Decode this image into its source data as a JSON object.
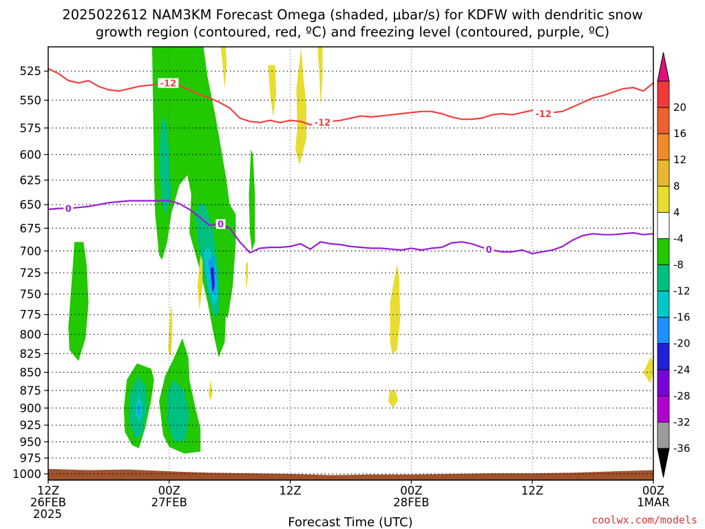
{
  "title": {
    "line1": "2025022612 NAM3KM Forecast Omega (shaded, μbar/s) for KDFW with dendritic snow",
    "line2": "growth region (contoured, red, ºC) and freezing level (contoured, purple, ºC)"
  },
  "x_axis_label": "Forecast Time (UTC)",
  "credit": "coolwx.com/models",
  "chart_data": {
    "type": "heatmap",
    "x_ticks": [
      {
        "hour": 0,
        "lines": [
          "12Z",
          "26FEB",
          "2025"
        ]
      },
      {
        "hour": 12,
        "lines": [
          "00Z",
          "27FEB"
        ]
      },
      {
        "hour": 24,
        "lines": [
          "12Z"
        ]
      },
      {
        "hour": 36,
        "lines": [
          "00Z",
          "28FEB"
        ]
      },
      {
        "hour": 48,
        "lines": [
          "12Z"
        ]
      },
      {
        "hour": 60,
        "lines": [
          "00Z",
          "1MAR"
        ]
      }
    ],
    "xlim": [
      0,
      60
    ],
    "y_ticks": [
      525,
      550,
      575,
      600,
      625,
      650,
      675,
      700,
      725,
      750,
      775,
      800,
      825,
      850,
      875,
      900,
      925,
      950,
      975,
      1000
    ],
    "ylim_hpa": [
      1010,
      505
    ],
    "y_scale": "log-pressure",
    "grid": "dotted",
    "colorbar": {
      "levels": [
        -36,
        -32,
        -28,
        -24,
        -20,
        -16,
        -12,
        -8,
        -4,
        4,
        8,
        12,
        16,
        20
      ],
      "colors": [
        "#9b9b9b",
        "#b000d0",
        "#7a00d8",
        "#2020d8",
        "#1e90ff",
        "#00c8c8",
        "#00c080",
        "#22c800",
        "#ffffff",
        "#e8dc30",
        "#e8b830",
        "#f08a2a",
        "#f06030",
        "#f03a3a"
      ],
      "under_color": "#000000",
      "over_color": "#e0107a"
    },
    "contour_colors": {
      "dgz_red": "#f04040",
      "freezing_purple": "#9a1ad8",
      "ground": "#a0522d"
    },
    "contour_labels": {
      "dgz": "-12",
      "freezing": "0"
    },
    "dgz_line_neg12": {
      "hours": [
        0,
        1,
        2,
        3,
        4,
        5,
        6,
        7,
        8,
        9,
        10,
        11,
        12,
        13,
        14,
        15,
        16,
        17,
        18,
        19,
        20,
        21,
        22,
        23,
        24,
        25,
        26,
        27,
        28,
        29,
        30,
        31,
        32,
        33,
        34,
        35,
        36,
        37,
        38,
        39,
        40,
        41,
        42,
        43,
        44,
        45,
        46,
        47,
        48,
        49,
        50,
        51,
        52,
        53,
        54,
        55,
        56,
        57,
        58,
        59,
        60
      ],
      "hpa": [
        523,
        527,
        533,
        535,
        533,
        538,
        541,
        542,
        540,
        538,
        537,
        536,
        535,
        537,
        541,
        545,
        548,
        552,
        557,
        566,
        569,
        570,
        568,
        570,
        568,
        569,
        572,
        570,
        569,
        568,
        566,
        564,
        565,
        564,
        563,
        562,
        561,
        560,
        560,
        562,
        565,
        567,
        567,
        566,
        563,
        562,
        563,
        561,
        559,
        562,
        561,
        560,
        556,
        552,
        548,
        546,
        543,
        540,
        539,
        542,
        535
      ]
    },
    "freezing_line_0": {
      "hours": [
        0,
        1,
        2,
        3,
        4,
        5,
        6,
        7,
        8,
        9,
        10,
        11,
        12,
        13,
        14,
        15,
        16,
        17,
        18,
        19,
        20,
        21,
        22,
        23,
        24,
        25,
        26,
        27,
        28,
        29,
        30,
        31,
        32,
        33,
        34,
        35,
        36,
        37,
        38,
        39,
        40,
        41,
        42,
        43,
        44,
        45,
        46,
        47,
        48,
        49,
        50,
        51,
        52,
        53,
        54,
        55,
        56,
        57,
        58,
        59,
        60
      ],
      "hpa": [
        655,
        654,
        654,
        653,
        652,
        650,
        648,
        647,
        646,
        646,
        646,
        646,
        646,
        649,
        655,
        663,
        672,
        670,
        675,
        690,
        702,
        697,
        696,
        696,
        695,
        692,
        698,
        690,
        692,
        693,
        695,
        696,
        697,
        697,
        698,
        699,
        697,
        699,
        697,
        696,
        691,
        690,
        692,
        696,
        699,
        701,
        701,
        699,
        703,
        701,
        699,
        695,
        688,
        683,
        681,
        682,
        682,
        681,
        680,
        682,
        681
      ]
    },
    "regions": [
      {
        "sign": "up",
        "value": -6,
        "poly": [
          [
            10.3,
            505
          ],
          [
            10.4,
            560
          ],
          [
            10.5,
            620
          ],
          [
            10.6,
            660
          ],
          [
            11.0,
            705
          ],
          [
            11.3,
            710
          ],
          [
            11.8,
            690
          ],
          [
            12.2,
            660
          ],
          [
            13.0,
            630
          ],
          [
            13.8,
            620
          ],
          [
            14.2,
            640
          ],
          [
            15.0,
            660
          ],
          [
            15.7,
            690
          ],
          [
            16.3,
            730
          ],
          [
            17.0,
            760
          ],
          [
            17.8,
            780
          ],
          [
            18.3,
            740
          ],
          [
            18.6,
            690
          ],
          [
            18.6,
            660
          ],
          [
            18.0,
            650
          ],
          [
            17.6,
            620
          ],
          [
            16.6,
            565
          ],
          [
            15.8,
            530
          ],
          [
            15.4,
            505
          ]
        ]
      },
      {
        "sign": "up",
        "value": -10,
        "poly": [
          [
            11.2,
            565
          ],
          [
            11.0,
            610
          ],
          [
            11.3,
            650
          ],
          [
            11.7,
            660
          ],
          [
            12.2,
            640
          ],
          [
            12.0,
            600
          ],
          [
            11.7,
            570
          ]
        ]
      },
      {
        "sign": "up",
        "value": -6,
        "poly": [
          [
            14.2,
            635
          ],
          [
            14.0,
            680
          ],
          [
            15.0,
            720
          ],
          [
            15.8,
            760
          ],
          [
            16.4,
            800
          ],
          [
            16.9,
            830
          ],
          [
            17.5,
            810
          ],
          [
            17.6,
            780
          ],
          [
            18.0,
            760
          ],
          [
            17.8,
            730
          ],
          [
            17.4,
            700
          ],
          [
            17.0,
            660
          ],
          [
            16.0,
            625
          ],
          [
            15.2,
            610
          ],
          [
            14.6,
            612
          ]
        ]
      },
      {
        "sign": "up",
        "value": -10,
        "poly": [
          [
            14.6,
            660
          ],
          [
            15.0,
            705
          ],
          [
            15.8,
            750
          ],
          [
            16.5,
            780
          ],
          [
            17.0,
            770
          ],
          [
            16.9,
            720
          ],
          [
            16.3,
            675
          ],
          [
            15.6,
            650
          ],
          [
            15.0,
            648
          ]
        ]
      },
      {
        "sign": "up",
        "value": -14,
        "poly": [
          [
            15.4,
            700
          ],
          [
            15.8,
            740
          ],
          [
            16.4,
            765
          ],
          [
            16.8,
            755
          ],
          [
            16.6,
            720
          ],
          [
            16.0,
            695
          ]
        ]
      },
      {
        "sign": "up",
        "value": -18,
        "poly": [
          [
            15.9,
            712
          ],
          [
            16.2,
            745
          ],
          [
            16.5,
            752
          ],
          [
            16.6,
            730
          ],
          [
            16.3,
            706
          ]
        ]
      },
      {
        "sign": "up",
        "value": -22,
        "poly": [
          [
            16.1,
            720
          ],
          [
            16.3,
            748
          ],
          [
            16.5,
            740
          ],
          [
            16.4,
            718
          ]
        ]
      },
      {
        "sign": "up",
        "value": -6,
        "poly": [
          [
            20.1,
            595
          ],
          [
            19.9,
            640
          ],
          [
            20.0,
            680
          ],
          [
            20.2,
            700
          ],
          [
            20.5,
            690
          ],
          [
            20.5,
            640
          ],
          [
            20.3,
            600
          ]
        ]
      },
      {
        "sign": "up",
        "value": -6,
        "poly": [
          [
            2.6,
            690
          ],
          [
            2.3,
            740
          ],
          [
            2.0,
            790
          ],
          [
            2.1,
            820
          ],
          [
            3.0,
            835
          ],
          [
            3.7,
            805
          ],
          [
            4.0,
            760
          ],
          [
            3.8,
            715
          ],
          [
            3.5,
            690
          ]
        ]
      },
      {
        "sign": "up",
        "value": -6,
        "poly": [
          [
            8.8,
            838
          ],
          [
            7.8,
            860
          ],
          [
            7.5,
            900
          ],
          [
            7.6,
            935
          ],
          [
            8.3,
            955
          ],
          [
            9.0,
            960
          ],
          [
            9.6,
            930
          ],
          [
            10.2,
            890
          ],
          [
            10.5,
            860
          ],
          [
            10.2,
            845
          ]
        ]
      },
      {
        "sign": "up",
        "value": -10,
        "poly": [
          [
            8.9,
            855
          ],
          [
            8.1,
            880
          ],
          [
            8.0,
            920
          ],
          [
            8.6,
            945
          ],
          [
            9.3,
            940
          ],
          [
            9.8,
            905
          ],
          [
            9.7,
            870
          ]
        ]
      },
      {
        "sign": "up",
        "value": -14,
        "poly": [
          [
            8.9,
            880
          ],
          [
            8.6,
            905
          ],
          [
            9.0,
            920
          ],
          [
            9.3,
            910
          ],
          [
            9.2,
            890
          ]
        ]
      },
      {
        "sign": "up",
        "value": -18,
        "poly": [
          [
            8.85,
            893
          ],
          [
            8.85,
            908
          ],
          [
            9.05,
            910
          ],
          [
            9.1,
            897
          ]
        ]
      },
      {
        "sign": "up",
        "value": -6,
        "poly": [
          [
            13.3,
            805
          ],
          [
            12.5,
            830
          ],
          [
            11.6,
            855
          ],
          [
            11.0,
            890
          ],
          [
            11.4,
            940
          ],
          [
            12.0,
            958
          ],
          [
            13.5,
            968
          ],
          [
            15.1,
            965
          ],
          [
            15.1,
            930
          ],
          [
            14.6,
            900
          ],
          [
            14.0,
            860
          ],
          [
            13.9,
            830
          ]
        ]
      },
      {
        "sign": "up",
        "value": -10,
        "poly": [
          [
            12.4,
            860
          ],
          [
            11.8,
            880
          ],
          [
            11.8,
            920
          ],
          [
            12.5,
            950
          ],
          [
            13.6,
            948
          ],
          [
            14.0,
            910
          ],
          [
            13.5,
            875
          ]
        ]
      },
      {
        "sign": "down",
        "value": 6,
        "poly": [
          [
            17.1,
            505
          ],
          [
            17.3,
            520
          ],
          [
            17.5,
            540
          ],
          [
            17.7,
            520
          ],
          [
            17.6,
            505
          ]
        ]
      },
      {
        "sign": "down",
        "value": 6,
        "poly": [
          [
            21.8,
            520
          ],
          [
            22.0,
            545
          ],
          [
            22.3,
            565
          ],
          [
            22.6,
            545
          ],
          [
            22.5,
            520
          ]
        ]
      },
      {
        "sign": "down",
        "value": 6,
        "poly": [
          [
            25.1,
            505
          ],
          [
            24.6,
            540
          ],
          [
            24.7,
            575
          ],
          [
            24.5,
            595
          ],
          [
            24.9,
            610
          ],
          [
            25.2,
            600
          ],
          [
            25.6,
            585
          ],
          [
            25.6,
            555
          ],
          [
            25.3,
            530
          ]
        ]
      },
      {
        "sign": "down",
        "value": 6,
        "poly": [
          [
            26.7,
            505
          ],
          [
            26.9,
            530
          ],
          [
            27.0,
            555
          ],
          [
            27.2,
            530
          ],
          [
            27.2,
            505
          ]
        ]
      },
      {
        "sign": "down",
        "value": 6,
        "poly": [
          [
            15.1,
            705
          ],
          [
            14.8,
            740
          ],
          [
            15.0,
            770
          ],
          [
            15.3,
            740
          ],
          [
            15.3,
            710
          ]
        ]
      },
      {
        "sign": "down",
        "value": 6,
        "poly": [
          [
            19.6,
            715
          ],
          [
            19.6,
            745
          ],
          [
            19.8,
            730
          ],
          [
            19.8,
            712
          ]
        ]
      },
      {
        "sign": "down",
        "value": 6,
        "poly": [
          [
            12.2,
            760
          ],
          [
            12.0,
            790
          ],
          [
            11.9,
            820
          ],
          [
            12.2,
            830
          ],
          [
            12.3,
            800
          ],
          [
            12.3,
            775
          ]
        ]
      },
      {
        "sign": "down",
        "value": 6,
        "poly": [
          [
            16.1,
            860
          ],
          [
            15.9,
            880
          ],
          [
            16.1,
            890
          ],
          [
            16.3,
            878
          ]
        ]
      },
      {
        "sign": "down",
        "value": 6,
        "poly": [
          [
            34.6,
            715
          ],
          [
            33.9,
            760
          ],
          [
            33.9,
            810
          ],
          [
            34.1,
            825
          ],
          [
            34.6,
            820
          ],
          [
            34.9,
            780
          ],
          [
            34.8,
            730
          ]
        ]
      },
      {
        "sign": "down",
        "value": 6,
        "poly": [
          [
            33.9,
            875
          ],
          [
            33.7,
            890
          ],
          [
            34.2,
            900
          ],
          [
            34.7,
            888
          ],
          [
            34.4,
            875
          ]
        ]
      },
      {
        "sign": "down",
        "value": 6,
        "poly": [
          [
            59.7,
            830
          ],
          [
            59.0,
            850
          ],
          [
            59.7,
            865
          ],
          [
            60,
            850
          ],
          [
            60,
            835
          ]
        ]
      }
    ],
    "ground_top_hpa": {
      "hours": [
        0,
        4,
        8,
        12,
        16,
        20,
        24,
        28,
        32,
        36,
        40,
        44,
        48,
        52,
        56,
        60
      ],
      "hpa": [
        992,
        994,
        993,
        996,
        998,
        999,
        1000,
        1002,
        1001,
        1001,
        1000,
        999,
        999,
        998,
        996,
        994
      ]
    }
  }
}
